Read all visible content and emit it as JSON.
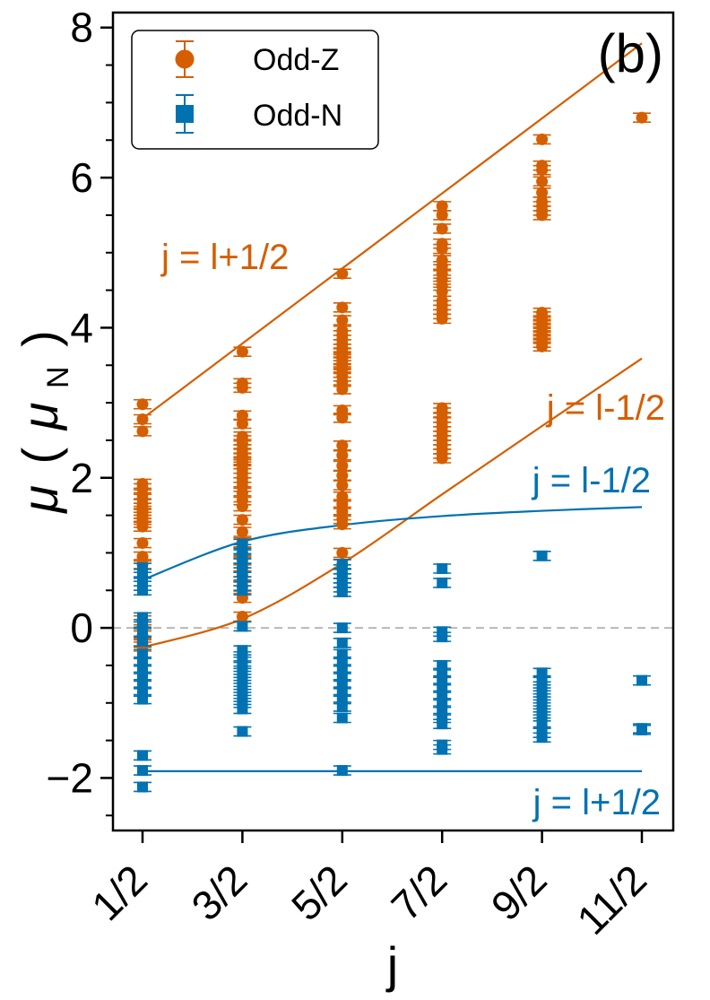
{
  "chart_data": {
    "type": "scatter",
    "panel_label": "(b)",
    "xlabel": "j",
    "ylabel_symbol": "μ",
    "ylabel_unit": "μ",
    "ylabel_unit_sub": "N",
    "ylabel_open": "(",
    "ylabel_close": ")",
    "categories": [
      "1/2",
      "3/2",
      "5/2",
      "7/2",
      "9/2",
      "11/2"
    ],
    "ylim": [
      -2.7,
      8.2
    ],
    "yticks": [
      -2,
      0,
      2,
      4,
      6,
      8
    ],
    "ytick_labels": [
      "−2",
      "0",
      "2",
      "4",
      "6",
      "8"
    ],
    "reference_line_y": 0,
    "legend": [
      {
        "name": "Odd-Z",
        "marker": "circle",
        "color": "#d55e00"
      },
      {
        "name": "Odd-N",
        "marker": "square",
        "color": "#0072b2"
      }
    ],
    "annotations": [
      {
        "text": "j = l+1/2",
        "color": "#d55e00"
      },
      {
        "text": "j = l-1/2",
        "color": "#d55e00"
      },
      {
        "text": "j = l-1/2",
        "color": "#0072b2"
      },
      {
        "text": "j = l+1/2",
        "color": "#0072b2"
      }
    ],
    "curves": [
      {
        "name": "Odd-Z j = l+1/2",
        "color": "#d55e00",
        "x": [
          0.5,
          1.5,
          2.5,
          3.5,
          4.5,
          5.5
        ],
        "y": [
          2.79,
          3.79,
          4.79,
          5.79,
          6.79,
          7.79
        ]
      },
      {
        "name": "Odd-Z j = l-1/2",
        "color": "#d55e00",
        "x": [
          0.5,
          1.5,
          2.5,
          3.5,
          4.5,
          5.5
        ],
        "y": [
          -0.26,
          0.12,
          0.86,
          1.78,
          2.69,
          3.59
        ]
      },
      {
        "name": "Odd-N j = l-1/2",
        "color": "#0072b2",
        "x": [
          0.5,
          1.5,
          2.5,
          3.5,
          4.5,
          5.5
        ],
        "y": [
          0.64,
          1.15,
          1.37,
          1.49,
          1.56,
          1.61
        ]
      },
      {
        "name": "Odd-N j = l+1/2",
        "color": "#0072b2",
        "x": [
          0.5,
          1.5,
          2.5,
          3.5,
          4.5,
          5.5
        ],
        "y": [
          -1.91,
          -1.91,
          -1.91,
          -1.91,
          -1.91,
          -1.91
        ]
      }
    ],
    "series": [
      {
        "name": "Odd-Z",
        "points": [
          {
            "x": 0.5,
            "y": [
              2.98,
              2.78,
              2.62,
              1.92,
              1.86,
              1.78,
              1.72,
              1.65,
              1.6,
              1.56,
              1.52,
              1.48,
              1.44,
              1.4,
              1.35,
              1.13,
              0.95,
              0.85,
              0.1,
              0.02,
              -0.1,
              -0.2,
              -0.25
            ]
          },
          {
            "x": 1.5,
            "y": [
              3.68,
              3.26,
              3.2,
              2.83,
              2.72,
              2.55,
              2.5,
              2.45,
              2.38,
              2.32,
              2.27,
              2.22,
              2.18,
              2.12,
              2.06,
              2.0,
              1.94,
              1.88,
              1.8,
              1.7,
              1.62,
              1.44,
              1.28,
              1.14,
              1.0,
              0.9,
              0.8,
              0.7,
              0.62,
              0.55,
              0.4,
              0.15
            ]
          },
          {
            "x": 2.5,
            "y": [
              4.72,
              4.27,
              4.1,
              3.96,
              3.9,
              3.84,
              3.78,
              3.72,
              3.67,
              3.62,
              3.58,
              3.54,
              3.5,
              3.45,
              3.4,
              3.35,
              3.28,
              3.18,
              2.9,
              2.8,
              2.43,
              2.3,
              2.16,
              2.03,
              1.9,
              1.75,
              1.65,
              1.55,
              1.45,
              1.38,
              1.0,
              0.85
            ]
          },
          {
            "x": 3.5,
            "y": [
              5.62,
              5.5,
              5.32,
              5.12,
              5.05,
              4.9,
              4.82,
              4.72,
              4.64,
              4.56,
              4.48,
              4.36,
              4.3,
              4.24,
              4.18,
              4.12,
              2.93,
              2.87,
              2.8,
              2.74,
              2.68,
              2.62,
              2.56,
              2.5,
              2.44,
              2.38,
              2.32,
              2.26
            ]
          },
          {
            "x": 4.5,
            "y": [
              6.51,
              6.16,
              6.1,
              5.95,
              5.8,
              5.68,
              5.62,
              5.56,
              5.5,
              4.2,
              4.15,
              4.1,
              4.05,
              4.0,
              3.95,
              3.9,
              3.85,
              3.8,
              3.75
            ]
          },
          {
            "x": 5.5,
            "y": [
              6.8
            ]
          }
        ]
      },
      {
        "name": "Odd-N",
        "points": [
          {
            "x": 0.5,
            "y": [
              0.8,
              0.72,
              0.62,
              0.56,
              0.5,
              0.14,
              0.05,
              -0.05,
              -0.18,
              -0.35,
              -0.45,
              -0.55,
              -0.65,
              -0.75,
              -0.85,
              -0.95,
              -1.7,
              -1.9,
              -2.12
            ]
          },
          {
            "x": 1.5,
            "y": [
              1.12,
              1.05,
              0.98,
              0.92,
              0.86,
              0.8,
              0.74,
              0.68,
              0.62,
              0.56,
              0.5,
              0.02,
              -0.3,
              -0.38,
              -0.45,
              -0.52,
              -0.6,
              -0.68,
              -0.76,
              -0.84,
              -0.92,
              -1.0,
              -1.08,
              -1.38
            ]
          },
          {
            "x": 2.5,
            "y": [
              0.85,
              0.78,
              0.72,
              0.66,
              0.6,
              0.54,
              0.48,
              0.0,
              -0.2,
              -0.35,
              -0.45,
              -0.55,
              -0.65,
              -0.75,
              -0.85,
              -0.95,
              -1.05,
              -1.2,
              -1.9
            ]
          },
          {
            "x": 3.5,
            "y": [
              0.79,
              0.6,
              -0.05,
              -0.12,
              -0.5,
              -0.6,
              -0.7,
              -0.8,
              -0.9,
              -1.0,
              -1.1,
              -1.2,
              -1.28,
              -1.56,
              -1.62
            ]
          },
          {
            "x": 4.5,
            "y": [
              0.96,
              -0.6,
              -0.7,
              -0.78,
              -0.86,
              -0.94,
              -1.02,
              -1.1,
              -1.18,
              -1.26,
              -1.4,
              -1.46
            ]
          },
          {
            "x": 5.5,
            "y": [
              -0.7,
              -1.34,
              -1.36
            ]
          }
        ]
      }
    ]
  }
}
